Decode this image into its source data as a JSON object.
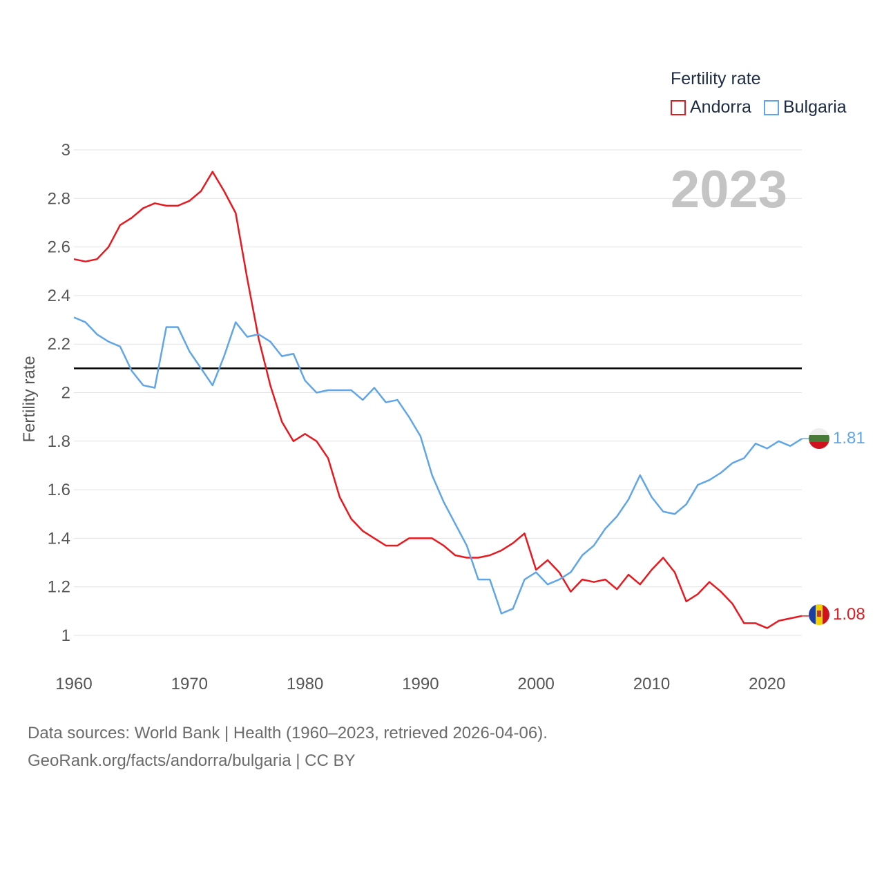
{
  "legend": {
    "title": "Fertility rate",
    "items": [
      {
        "label": "Andorra",
        "color": "#e8181f"
      },
      {
        "label": "Bulgaria",
        "color": "#60a5e6"
      }
    ]
  },
  "footer": {
    "line1": "Data sources: World Bank | Health (1960–2023, retrieved 2026-04-06).",
    "line2": "GeoRank.org/facts/andorra/bulgaria | CC BY"
  },
  "chart_data": {
    "type": "line",
    "title": "Fertility rate",
    "year_label": "2023",
    "xlabel": "",
    "ylabel": "Fertility rate",
    "xlim": [
      1960,
      2023
    ],
    "ylim": [
      0.8,
      3.0
    ],
    "x_ticks": [
      1960,
      1970,
      1980,
      1990,
      2000,
      2010,
      2020
    ],
    "y_ticks": [
      1,
      1.2,
      1.4,
      1.6,
      1.8,
      2,
      2.2,
      2.4,
      2.6,
      2.8,
      3
    ],
    "reference_line": {
      "value": 2.1,
      "color": "#000000"
    },
    "x": [
      1960,
      1961,
      1962,
      1963,
      1964,
      1965,
      1966,
      1967,
      1968,
      1969,
      1970,
      1971,
      1972,
      1973,
      1974,
      1975,
      1976,
      1977,
      1978,
      1979,
      1980,
      1981,
      1982,
      1983,
      1984,
      1985,
      1986,
      1987,
      1988,
      1989,
      1990,
      1991,
      1992,
      1993,
      1994,
      1995,
      1996,
      1997,
      1998,
      1999,
      2000,
      2001,
      2002,
      2003,
      2004,
      2005,
      2006,
      2007,
      2008,
      2009,
      2010,
      2011,
      2012,
      2013,
      2014,
      2015,
      2016,
      2017,
      2018,
      2019,
      2020,
      2021,
      2022,
      2023
    ],
    "series": [
      {
        "name": "Andorra",
        "color": "#e8181f",
        "end_label": "1.08",
        "values": [
          2.55,
          2.54,
          2.55,
          2.6,
          2.69,
          2.72,
          2.76,
          2.78,
          2.77,
          2.77,
          2.79,
          2.83,
          2.91,
          2.83,
          2.74,
          2.47,
          2.22,
          2.03,
          1.88,
          1.8,
          1.83,
          1.8,
          1.73,
          1.57,
          1.48,
          1.43,
          1.4,
          1.37,
          1.37,
          1.4,
          1.4,
          1.4,
          1.37,
          1.33,
          1.32,
          1.32,
          1.33,
          1.35,
          1.38,
          1.42,
          1.27,
          1.31,
          1.26,
          1.18,
          1.23,
          1.22,
          1.23,
          1.19,
          1.25,
          1.21,
          1.27,
          1.32,
          1.26,
          1.14,
          1.17,
          1.22,
          1.18,
          1.13,
          1.05,
          1.05,
          1.03,
          1.06,
          1.07,
          1.08
        ]
      },
      {
        "name": "Bulgaria",
        "color": "#60a5e6",
        "end_label": "1.81",
        "values": [
          2.31,
          2.29,
          2.24,
          2.21,
          2.19,
          2.09,
          2.03,
          2.02,
          2.27,
          2.27,
          2.17,
          2.1,
          2.03,
          2.15,
          2.29,
          2.23,
          2.24,
          2.21,
          2.15,
          2.16,
          2.05,
          2.0,
          2.01,
          2.01,
          2.01,
          1.97,
          2.02,
          1.96,
          1.97,
          1.9,
          1.82,
          1.66,
          1.55,
          1.46,
          1.37,
          1.23,
          1.23,
          1.09,
          1.11,
          1.23,
          1.26,
          1.21,
          1.23,
          1.26,
          1.33,
          1.37,
          1.44,
          1.49,
          1.56,
          1.66,
          1.57,
          1.51,
          1.5,
          1.54,
          1.62,
          1.64,
          1.67,
          1.71,
          1.73,
          1.79,
          1.77,
          1.8,
          1.78,
          1.81
        ]
      }
    ]
  }
}
